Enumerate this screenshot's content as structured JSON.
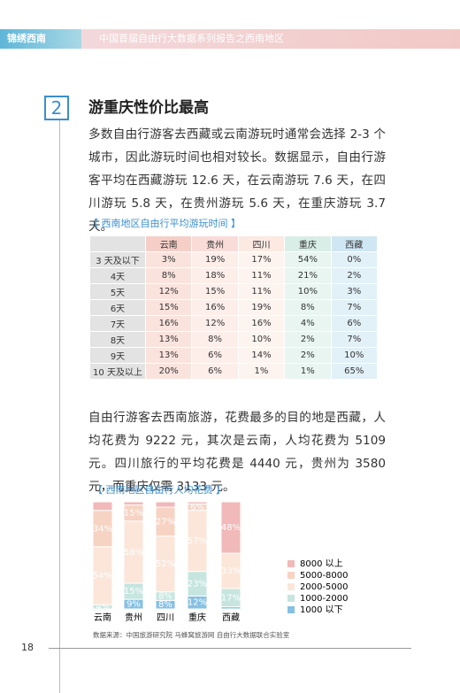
{
  "header": {
    "tag": "锦绣西南",
    "title": "中国首届自由行大数据系列报告之西南地区"
  },
  "section": {
    "number": "2",
    "title": "游重庆性价比最高"
  },
  "paragraphs": [
    "多数自由行游客去西藏或云南游玩时通常会选择 2-3 个城市，因此游玩时间也相对较长。数据显示，自由行游客平均在西藏游玩 12.6 天，在云南游玩 7.6 天，在四川游玩 5.8 天，在贵州游玩 5.6 天，在重庆游玩 3.7 天。",
    "自由行游客去西南旅游，花费最多的目的地是西藏，人均花费为 9222 元，其次是云南，人均花费为 5109 元。四川旅行的平均花费是 4440 元，贵州为 3580 元，而重庆仅需 3133 元。"
  ],
  "table": {
    "caption": "【 西南地区自由行平均游玩时间 】",
    "columns": [
      "云南",
      "贵州",
      "四川",
      "重庆",
      "西藏"
    ],
    "rows": [
      [
        "3 天及以下",
        "3%",
        "19%",
        "17%",
        "54%",
        "0%"
      ],
      [
        "4天",
        "8%",
        "18%",
        "11%",
        "21%",
        "2%"
      ],
      [
        "5天",
        "12%",
        "15%",
        "11%",
        "10%",
        "3%"
      ],
      [
        "6天",
        "15%",
        "16%",
        "19%",
        "8%",
        "7%"
      ],
      [
        "7天",
        "16%",
        "12%",
        "16%",
        "4%",
        "6%"
      ],
      [
        "8天",
        "13%",
        "8%",
        "10%",
        "2%",
        "7%"
      ],
      [
        "9天",
        "13%",
        "6%",
        "14%",
        "2%",
        "10%"
      ],
      [
        "10 天及以上",
        "20%",
        "6%",
        "1%",
        "1%",
        "65%"
      ]
    ]
  },
  "chart_data": {
    "type": "stacked-bar",
    "title": "【 西南地区自由行人均花费 】",
    "categories": [
      "云南",
      "贵州",
      "四川",
      "重庆",
      "西藏"
    ],
    "series": [
      {
        "name": "1000 以下",
        "color": "#86c0e3",
        "values": [
          0,
          9,
          8,
          12,
          2
        ],
        "value_labels": [
          null,
          "9%",
          "8%",
          "12%",
          null
        ]
      },
      {
        "name": "1000-2000",
        "color": "#c6e5df",
        "values": [
          4,
          15,
          8,
          23,
          17
        ],
        "value_labels": [
          "4%",
          "15%",
          "8%",
          "23%",
          "17%"
        ]
      },
      {
        "name": "2000-5000",
        "color": "#fbe6d9",
        "values": [
          54,
          58,
          52,
          57,
          33
        ],
        "value_labels": [
          "54%",
          "58%",
          "52%",
          "57%",
          "33%"
        ]
      },
      {
        "name": "5000-8000",
        "color": "#f7d3c3",
        "values": [
          34,
          15,
          27,
          6,
          0
        ],
        "value_labels": [
          "34%",
          "15%",
          "27%",
          "6%",
          null
        ]
      },
      {
        "name": "8000 以上",
        "color": "#f1b9b9",
        "values": [
          8,
          3,
          5,
          2,
          48
        ],
        "value_labels": [
          null,
          null,
          null,
          null,
          "48%"
        ]
      }
    ]
  },
  "footer": {
    "source": "数据来源：中国旅游研究院 马蜂窝旅游网 自由行大数据联合实验室",
    "page": "18"
  }
}
